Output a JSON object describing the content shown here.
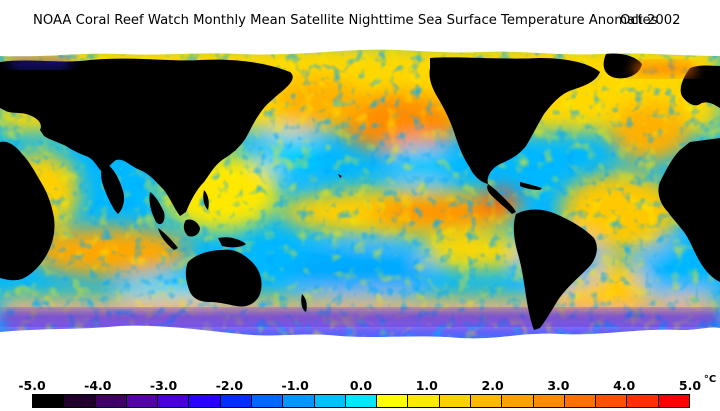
{
  "title": {
    "main": "NOAA Coral Reef Watch Monthly Mean Satellite Nighttime Sea Surface Temperature Anomalies",
    "date": "Oct 2002"
  },
  "legend": {
    "unit": "°C",
    "labels": [
      "-5.0",
      "-4.0",
      "-3.0",
      "-2.0",
      "-1.0",
      "0.0",
      "1.0",
      "2.0",
      "3.0",
      "4.0",
      "5.0"
    ],
    "swatches": [
      "#000000",
      "#22002e",
      "#40006a",
      "#5500a8",
      "#4b00d8",
      "#2a00ff",
      "#0030ff",
      "#0068ff",
      "#0098ff",
      "#00c0ff",
      "#00e8ff",
      "#ffff00",
      "#ffe800",
      "#ffd000",
      "#ffb800",
      "#ffa000",
      "#ff8c00",
      "#ff7000",
      "#ff5000",
      "#ff3000",
      "#ff0000"
    ]
  },
  "colors": {
    "land": "#000000",
    "ice": "#ffffff",
    "ocean_neutral": "#00d8ff",
    "warm": "#ff9000",
    "cool": "#00b0ff"
  }
}
